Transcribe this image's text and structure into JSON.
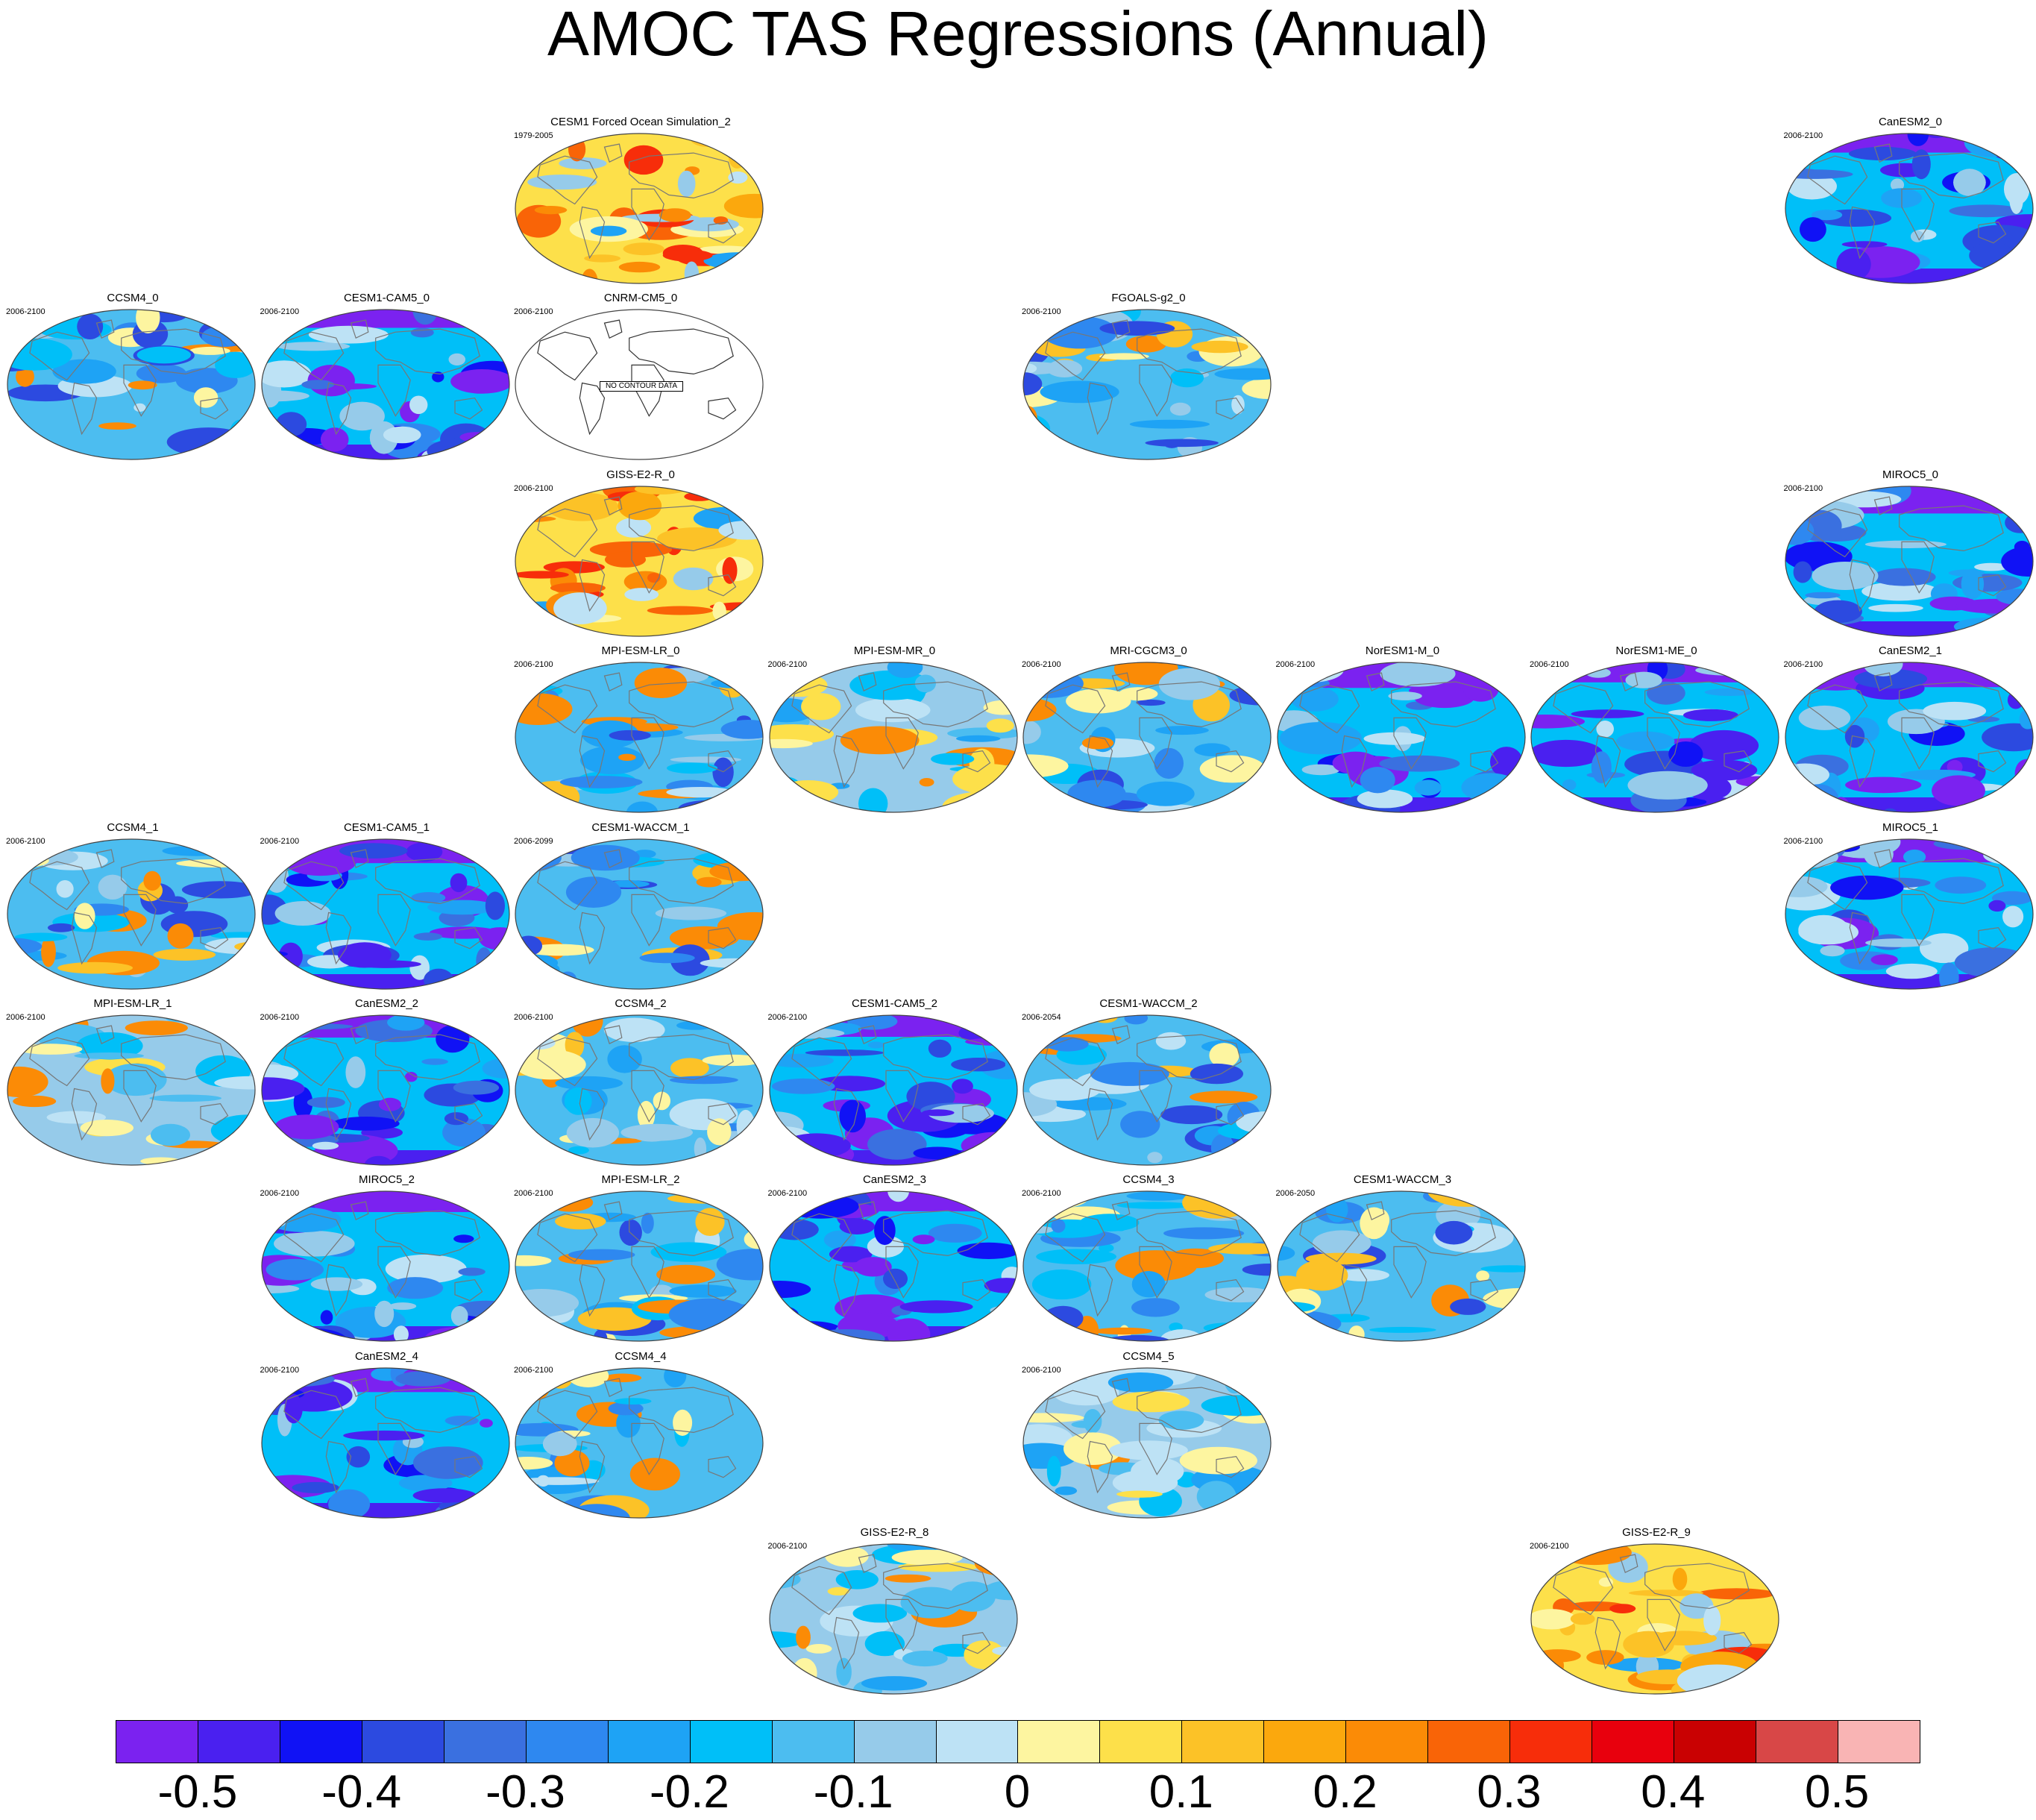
{
  "title": "AMOC TAS Regressions (Annual)",
  "no_data_label": "NO CONTOUR DATA",
  "chart_data": {
    "type": "heatmap",
    "title": "AMOC TAS Regressions (Annual)",
    "panel_type": "global map (Robinson projection), filled contours",
    "colorbar": {
      "ticks": [
        "-0.5",
        "-0.4",
        "-0.3",
        "-0.2",
        "-0.1",
        "0",
        "0.1",
        "0.2",
        "0.3",
        "0.4",
        "0.5"
      ],
      "colors": [
        "#7b22f0",
        "#4a20f0",
        "#1012f5",
        "#2c4ae0",
        "#3a70e0",
        "#2e88f0",
        "#1ea3f5",
        "#00bff8",
        "#4cbdf0",
        "#96cbea",
        "#bde2f5",
        "#fdf5a0",
        "#fde04a",
        "#fcc227",
        "#fba80d",
        "#fb8b06",
        "#f96407",
        "#f72d0a",
        "#e8000d",
        "#c90102",
        "#d84747",
        "#f9b4b4"
      ]
    },
    "panels": [
      {
        "name": "CESM1 Forced Ocean Simulation_2",
        "period": "1979-2005",
        "row": 0,
        "col": 2,
        "dominant": "warm"
      },
      {
        "name": "CanESM2_0",
        "period": "2006-2100",
        "row": 0,
        "col": 7,
        "dominant": "cold"
      },
      {
        "name": "CCSM4_0",
        "period": "2006-2100",
        "row": 1,
        "col": 0,
        "dominant": "mixed"
      },
      {
        "name": "CESM1-CAM5_0",
        "period": "2006-2100",
        "row": 1,
        "col": 1,
        "dominant": "cold"
      },
      {
        "name": "CNRM-CM5_0",
        "period": "2006-2100",
        "row": 1,
        "col": 2,
        "dominant": "nodata"
      },
      {
        "name": "FGOALS-g2_0",
        "period": "2006-2100",
        "row": 1,
        "col": 4,
        "dominant": "mixed"
      },
      {
        "name": "GISS-E2-R_0",
        "period": "2006-2100",
        "row": 2,
        "col": 2,
        "dominant": "warm"
      },
      {
        "name": "MIROC5_0",
        "period": "2006-2100",
        "row": 2,
        "col": 7,
        "dominant": "cold"
      },
      {
        "name": "MPI-ESM-LR_0",
        "period": "2006-2100",
        "row": 3,
        "col": 2,
        "dominant": "mixed"
      },
      {
        "name": "MPI-ESM-MR_0",
        "period": "2006-2100",
        "row": 3,
        "col": 3,
        "dominant": "light"
      },
      {
        "name": "MRI-CGCM3_0",
        "period": "2006-2100",
        "row": 3,
        "col": 4,
        "dominant": "mixed"
      },
      {
        "name": "NorESM1-M_0",
        "period": "2006-2100",
        "row": 3,
        "col": 5,
        "dominant": "cold"
      },
      {
        "name": "NorESM1-ME_0",
        "period": "2006-2100",
        "row": 3,
        "col": 6,
        "dominant": "cold"
      },
      {
        "name": "CanESM2_1",
        "period": "2006-2100",
        "row": 3,
        "col": 7,
        "dominant": "cold"
      },
      {
        "name": "CCSM4_1",
        "period": "2006-2100",
        "row": 4,
        "col": 0,
        "dominant": "mixed"
      },
      {
        "name": "CESM1-CAM5_1",
        "period": "2006-2100",
        "row": 4,
        "col": 1,
        "dominant": "cold"
      },
      {
        "name": "CESM1-WACCM_1",
        "period": "2006-2099",
        "row": 4,
        "col": 2,
        "dominant": "mixed"
      },
      {
        "name": "MIROC5_1",
        "period": "2006-2100",
        "row": 4,
        "col": 7,
        "dominant": "cold"
      },
      {
        "name": "MPI-ESM-LR_1",
        "period": "2006-2100",
        "row": 5,
        "col": 0,
        "dominant": "light"
      },
      {
        "name": "CanESM2_2",
        "period": "2006-2100",
        "row": 5,
        "col": 1,
        "dominant": "cold"
      },
      {
        "name": "CCSM4_2",
        "period": "2006-2100",
        "row": 5,
        "col": 2,
        "dominant": "mixed"
      },
      {
        "name": "CESM1-CAM5_2",
        "period": "2006-2100",
        "row": 5,
        "col": 3,
        "dominant": "cold"
      },
      {
        "name": "CESM1-WACCM_2",
        "period": "2006-2054",
        "row": 5,
        "col": 4,
        "dominant": "mixed"
      },
      {
        "name": "MIROC5_2",
        "period": "2006-2100",
        "row": 6,
        "col": 1,
        "dominant": "cold"
      },
      {
        "name": "MPI-ESM-LR_2",
        "period": "2006-2100",
        "row": 6,
        "col": 2,
        "dominant": "mixed"
      },
      {
        "name": "CanESM2_3",
        "period": "2006-2100",
        "row": 6,
        "col": 3,
        "dominant": "cold"
      },
      {
        "name": "CCSM4_3",
        "period": "2006-2100",
        "row": 6,
        "col": 4,
        "dominant": "mixed"
      },
      {
        "name": "CESM1-WACCM_3",
        "period": "2006-2050",
        "row": 6,
        "col": 5,
        "dominant": "mixed"
      },
      {
        "name": "CanESM2_4",
        "period": "2006-2100",
        "row": 7,
        "col": 1,
        "dominant": "cold"
      },
      {
        "name": "CCSM4_4",
        "period": "2006-2100",
        "row": 7,
        "col": 2,
        "dominant": "mixed"
      },
      {
        "name": "CCSM4_5",
        "period": "2006-2100",
        "row": 7,
        "col": 4,
        "dominant": "light"
      },
      {
        "name": "GISS-E2-R_8",
        "period": "2006-2100",
        "row": 8,
        "col": 3,
        "dominant": "light"
      },
      {
        "name": "GISS-E2-R_9",
        "period": "2006-2100",
        "row": 8,
        "col": 6,
        "dominant": "warm"
      }
    ]
  }
}
